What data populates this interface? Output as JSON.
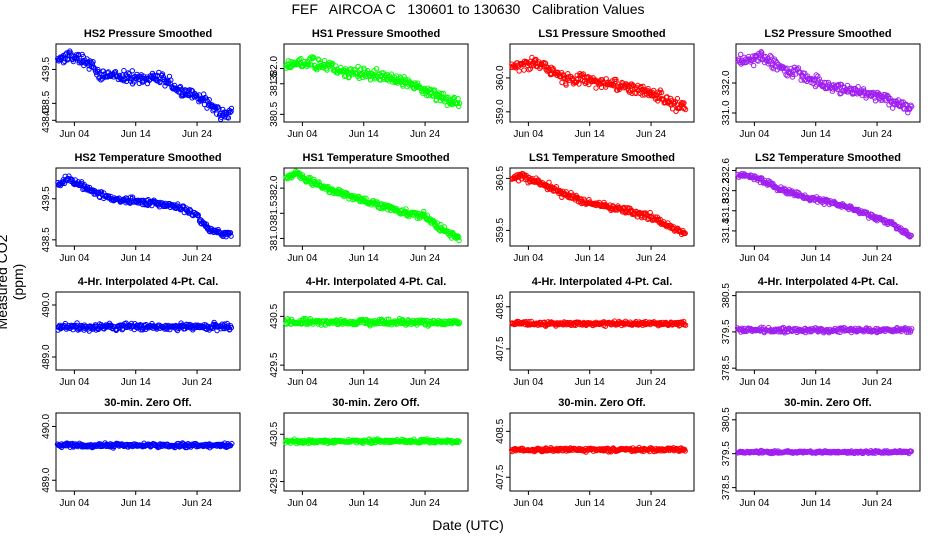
{
  "figure": {
    "title": "FEF   AIRCOA C   130601 to 130630   Calibration Values",
    "xlabel": "Date (UTC)",
    "ylabel": "Measured CO2 (ppm)"
  },
  "x_ticks": [
    "Jun 04",
    "Jun 14",
    "Jun 24"
  ],
  "chart_data": [
    {
      "type": "scatter",
      "title": "HS2 Pressure Smoothed",
      "color": "#0000ff",
      "x_range": [
        1,
        31
      ],
      "ylim": [
        437.95,
        440.25
      ],
      "yticks": [
        "438.0",
        "438.5",
        "439.5"
      ],
      "y_tick_values": [
        438.0,
        438.5,
        439.5
      ],
      "x_ticks": [
        4,
        14,
        24
      ],
      "trend": [
        [
          1.5,
          439.8
        ],
        [
          3,
          439.95
        ],
        [
          6,
          439.75
        ],
        [
          8,
          439.35
        ],
        [
          14,
          439.25
        ],
        [
          19,
          439.2
        ],
        [
          21,
          438.85
        ],
        [
          24,
          438.75
        ],
        [
          26,
          438.45
        ],
        [
          28,
          438.15
        ],
        [
          30,
          438.25
        ]
      ],
      "noise": 0.13
    },
    {
      "type": "scatter",
      "title": "HS1 Pressure Smoothed",
      "color": "#00ff00",
      "x_range": [
        1,
        31
      ],
      "ylim": [
        380.25,
        382.8
      ],
      "yticks": [
        "380.5",
        "381.5",
        "382.0"
      ],
      "y_tick_values": [
        380.5,
        381.5,
        382.0
      ],
      "x_ticks": [
        4,
        14,
        24
      ],
      "trend": [
        [
          1.5,
          382.15
        ],
        [
          4,
          382.2
        ],
        [
          7,
          382.15
        ],
        [
          10,
          381.9
        ],
        [
          14,
          381.85
        ],
        [
          19,
          381.65
        ],
        [
          21,
          381.55
        ],
        [
          24,
          381.3
        ],
        [
          27,
          381.0
        ],
        [
          30,
          380.85
        ]
      ],
      "noise": 0.14
    },
    {
      "type": "scatter",
      "title": "LS1 Pressure Smoothed",
      "color": "#ff0000",
      "x_range": [
        1,
        31
      ],
      "ylim": [
        358.7,
        361.0
      ],
      "yticks": [
        "359.0",
        "360.0"
      ],
      "y_tick_values": [
        359.0,
        360.0
      ],
      "x_ticks": [
        4,
        14,
        24
      ],
      "trend": [
        [
          1.5,
          360.35
        ],
        [
          4,
          360.45
        ],
        [
          7,
          360.3
        ],
        [
          10,
          359.95
        ],
        [
          14,
          359.95
        ],
        [
          19,
          359.75
        ],
        [
          23,
          359.65
        ],
        [
          26,
          359.4
        ],
        [
          28,
          359.2
        ],
        [
          30,
          359.2
        ]
      ],
      "noise": 0.13
    },
    {
      "type": "scatter",
      "title": "LS2 Pressure Smoothed",
      "color": "#a020f0",
      "x_range": [
        1,
        31
      ],
      "ylim": [
        330.7,
        333.3
      ],
      "yticks": [
        "331.0",
        "332.0"
      ],
      "y_tick_values": [
        331.0,
        332.0
      ],
      "x_ticks": [
        4,
        14,
        24
      ],
      "trend": [
        [
          1.5,
          332.75
        ],
        [
          5,
          332.85
        ],
        [
          8,
          332.55
        ],
        [
          12,
          332.25
        ],
        [
          16,
          331.9
        ],
        [
          20,
          331.75
        ],
        [
          24,
          331.6
        ],
        [
          27,
          331.35
        ],
        [
          30,
          331.1
        ]
      ],
      "noise": 0.14
    },
    {
      "type": "scatter",
      "title": "HS2 Temperature Smoothed",
      "color": "#0000ff",
      "x_range": [
        1,
        31
      ],
      "ylim": [
        438.35,
        440.25
      ],
      "yticks": [
        "438.5",
        "439.5"
      ],
      "y_tick_values": [
        438.5,
        439.5
      ],
      "x_ticks": [
        4,
        14,
        24
      ],
      "trend": [
        [
          1.5,
          439.85
        ],
        [
          3,
          440.0
        ],
        [
          5,
          439.85
        ],
        [
          7,
          439.7
        ],
        [
          10,
          439.5
        ],
        [
          14,
          439.45
        ],
        [
          19,
          439.35
        ],
        [
          22,
          439.25
        ],
        [
          24,
          439.1
        ],
        [
          26,
          438.75
        ],
        [
          28,
          438.65
        ],
        [
          30,
          438.6
        ]
      ],
      "noise": 0.06
    },
    {
      "type": "scatter",
      "title": "HS1 Temperature Smoothed",
      "color": "#00ff00",
      "x_range": [
        1,
        31
      ],
      "ylim": [
        380.85,
        382.4
      ],
      "yticks": [
        "381.0",
        "381.5",
        "382.0"
      ],
      "y_tick_values": [
        381.0,
        381.5,
        382.0
      ],
      "x_ticks": [
        4,
        14,
        24
      ],
      "trend": [
        [
          1.5,
          382.2
        ],
        [
          3,
          382.28
        ],
        [
          6,
          382.1
        ],
        [
          9,
          381.95
        ],
        [
          13,
          381.8
        ],
        [
          17,
          381.65
        ],
        [
          21,
          381.5
        ],
        [
          24,
          381.45
        ],
        [
          26,
          381.25
        ],
        [
          28,
          381.1
        ],
        [
          30,
          381.0
        ]
      ],
      "noise": 0.05
    },
    {
      "type": "scatter",
      "title": "LS1 Temperature Smoothed",
      "color": "#ff0000",
      "x_range": [
        1,
        31
      ],
      "ylim": [
        359.2,
        360.7
      ],
      "yticks": [
        "359.5",
        "360.5"
      ],
      "y_tick_values": [
        359.5,
        360.5
      ],
      "x_ticks": [
        4,
        14,
        24
      ],
      "trend": [
        [
          1.5,
          360.5
        ],
        [
          3,
          360.55
        ],
        [
          6,
          360.4
        ],
        [
          9,
          360.25
        ],
        [
          13,
          360.05
        ],
        [
          17,
          359.95
        ],
        [
          21,
          359.85
        ],
        [
          24,
          359.75
        ],
        [
          27,
          359.6
        ],
        [
          30,
          359.4
        ]
      ],
      "noise": 0.05
    },
    {
      "type": "scatter",
      "title": "LS2 Temperature Smoothed",
      "color": "#a020f0",
      "x_range": [
        1,
        31
      ],
      "ylim": [
        331.1,
        332.65
      ],
      "yticks": [
        "331.4",
        "331.8",
        "332.2",
        "332.6"
      ],
      "y_tick_values": [
        331.4,
        331.8,
        332.2,
        332.6
      ],
      "x_ticks": [
        4,
        14,
        24
      ],
      "trend": [
        [
          1.5,
          332.5
        ],
        [
          3,
          332.5
        ],
        [
          6,
          332.35
        ],
        [
          9,
          332.2
        ],
        [
          13,
          332.05
        ],
        [
          17,
          331.95
        ],
        [
          21,
          331.8
        ],
        [
          24,
          331.65
        ],
        [
          27,
          331.5
        ],
        [
          30,
          331.25
        ]
      ],
      "noise": 0.04
    },
    {
      "type": "scatter",
      "title": "4-Hr. Interpolated 4-Pt. Cal.",
      "color": "#0000ff",
      "x_range": [
        1,
        31
      ],
      "ylim": [
        488.75,
        490.25
      ],
      "yticks": [
        "489.0",
        "490.0"
      ],
      "y_tick_values": [
        489.0,
        490.0
      ],
      "x_ticks": [
        4,
        14,
        24
      ],
      "trend": [
        [
          1,
          489.58
        ],
        [
          31,
          489.58
        ]
      ],
      "noise": 0.05
    },
    {
      "type": "scatter",
      "title": "4-Hr. Interpolated 4-Pt. Cal.",
      "color": "#00ff00",
      "x_range": [
        1,
        31
      ],
      "ylim": [
        429.4,
        431.0
      ],
      "yticks": [
        "429.5",
        "430.5"
      ],
      "y_tick_values": [
        429.5,
        430.5
      ],
      "x_ticks": [
        4,
        14,
        24
      ],
      "trend": [
        [
          1,
          430.38
        ],
        [
          31,
          430.38
        ]
      ],
      "noise": 0.05
    },
    {
      "type": "scatter",
      "title": "4-Hr. Interpolated 4-Pt. Cal.",
      "color": "#ff0000",
      "x_range": [
        1,
        31
      ],
      "ylim": [
        407.0,
        408.85
      ],
      "yticks": [
        "407.5",
        "408.5"
      ],
      "y_tick_values": [
        407.5,
        408.5
      ],
      "x_ticks": [
        4,
        14,
        24
      ],
      "trend": [
        [
          1,
          408.1
        ],
        [
          31,
          408.1
        ]
      ],
      "noise": 0.04
    },
    {
      "type": "scatter",
      "title": "4-Hr. Interpolated 4-Pt. Cal.",
      "color": "#a020f0",
      "x_range": [
        1,
        31
      ],
      "ylim": [
        378.45,
        380.6
      ],
      "yticks": [
        "378.5",
        "379.5",
        "380.5"
      ],
      "y_tick_values": [
        378.5,
        379.5,
        380.5
      ],
      "x_ticks": [
        4,
        14,
        24
      ],
      "trend": [
        [
          1,
          379.55
        ],
        [
          31,
          379.55
        ]
      ],
      "noise": 0.05
    },
    {
      "type": "scatter",
      "title": "30-min. Zero Off.",
      "color": "#0000ff",
      "x_range": [
        1,
        31
      ],
      "ylim": [
        488.8,
        490.25
      ],
      "yticks": [
        "489.0",
        "490.0"
      ],
      "y_tick_values": [
        489.0,
        490.0
      ],
      "x_ticks": [
        4,
        14,
        24
      ],
      "trend": [
        [
          1,
          489.65
        ],
        [
          31,
          489.65
        ]
      ],
      "noise": 0.03
    },
    {
      "type": "scatter",
      "title": "30-min. Zero Off.",
      "color": "#00ff00",
      "x_range": [
        1,
        31
      ],
      "ylim": [
        429.3,
        430.95
      ],
      "yticks": [
        "429.5",
        "430.5"
      ],
      "y_tick_values": [
        429.5,
        430.5
      ],
      "x_ticks": [
        4,
        14,
        24
      ],
      "trend": [
        [
          1,
          430.35
        ],
        [
          31,
          430.35
        ]
      ],
      "noise": 0.03
    },
    {
      "type": "scatter",
      "title": "30-min. Zero Off.",
      "color": "#ff0000",
      "x_range": [
        1,
        31
      ],
      "ylim": [
        407.2,
        408.9
      ],
      "yticks": [
        "407.5",
        "408.5"
      ],
      "y_tick_values": [
        407.5,
        408.5
      ],
      "x_ticks": [
        4,
        14,
        24
      ],
      "trend": [
        [
          1,
          408.1
        ],
        [
          31,
          408.1
        ]
      ],
      "noise": 0.03
    },
    {
      "type": "scatter",
      "title": "30-min. Zero Off.",
      "color": "#a020f0",
      "x_range": [
        1,
        31
      ],
      "ylim": [
        378.4,
        380.7
      ],
      "yticks": [
        "378.5",
        "379.5",
        "380.5"
      ],
      "y_tick_values": [
        378.5,
        379.5,
        380.5
      ],
      "x_ticks": [
        4,
        14,
        24
      ],
      "trend": [
        [
          1,
          379.55
        ],
        [
          31,
          379.55
        ]
      ],
      "noise": 0.03
    }
  ]
}
